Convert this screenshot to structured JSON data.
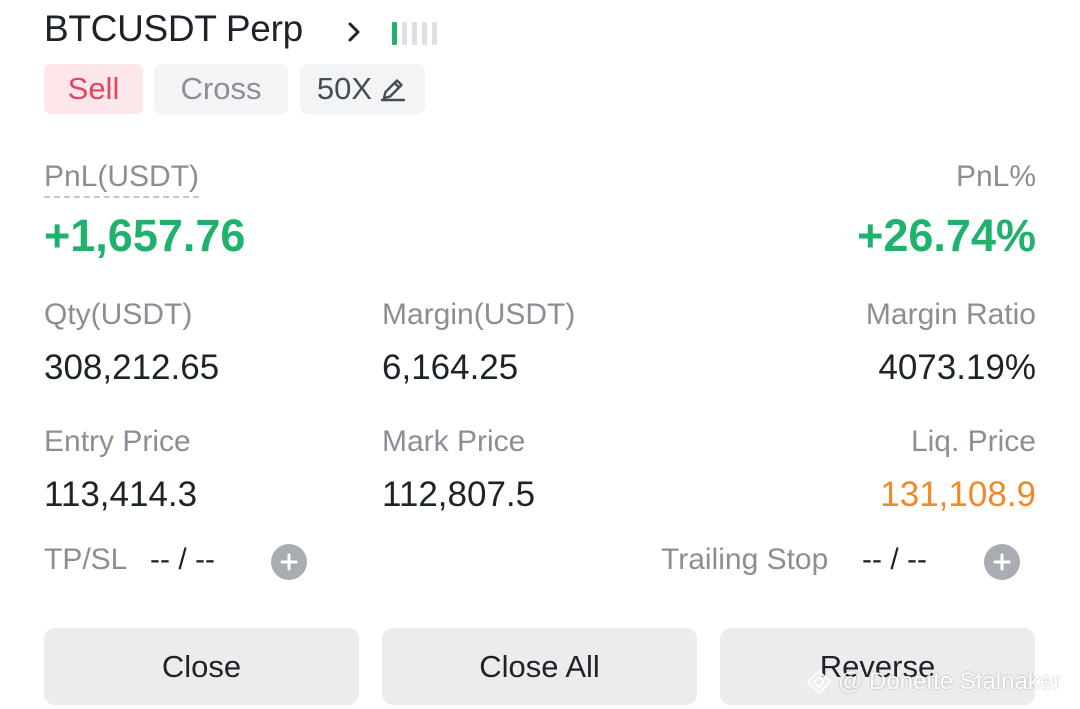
{
  "header": {
    "symbol": "BTCUSDT Perp",
    "signal_bars_total": 5,
    "signal_bars_active": 1,
    "colors": {
      "active": "#20b26c",
      "inactive": "#dcdfe3"
    }
  },
  "tags": {
    "side": "Sell",
    "margin_mode": "Cross",
    "leverage": "50X"
  },
  "pnl": {
    "label": "PnL(USDT)",
    "value": "+1,657.76",
    "pct_label": "PnL%",
    "pct_value": "+26.74%"
  },
  "stats": {
    "qty_label": "Qty(USDT)",
    "qty_value": "308,212.65",
    "margin_label": "Margin(USDT)",
    "margin_value": "6,164.25",
    "ratio_label": "Margin Ratio",
    "ratio_value": "4073.19%",
    "entry_label": "Entry Price",
    "entry_value": "113,414.3",
    "mark_label": "Mark Price",
    "mark_value": "112,807.5",
    "liq_label": "Liq. Price",
    "liq_value": "131,108.9"
  },
  "tpsl": {
    "label": "TP/SL",
    "value": "-- / --"
  },
  "trailing": {
    "label": "Trailing Stop",
    "value": "-- / --"
  },
  "actions": {
    "close": "Close",
    "close_all": "Close All",
    "reverse": "Reverse"
  },
  "watermark": "@ Donette Stalnaker",
  "colors": {
    "profit": "#20b26c",
    "sell": "#e6455e",
    "liquidation": "#f0892a"
  }
}
